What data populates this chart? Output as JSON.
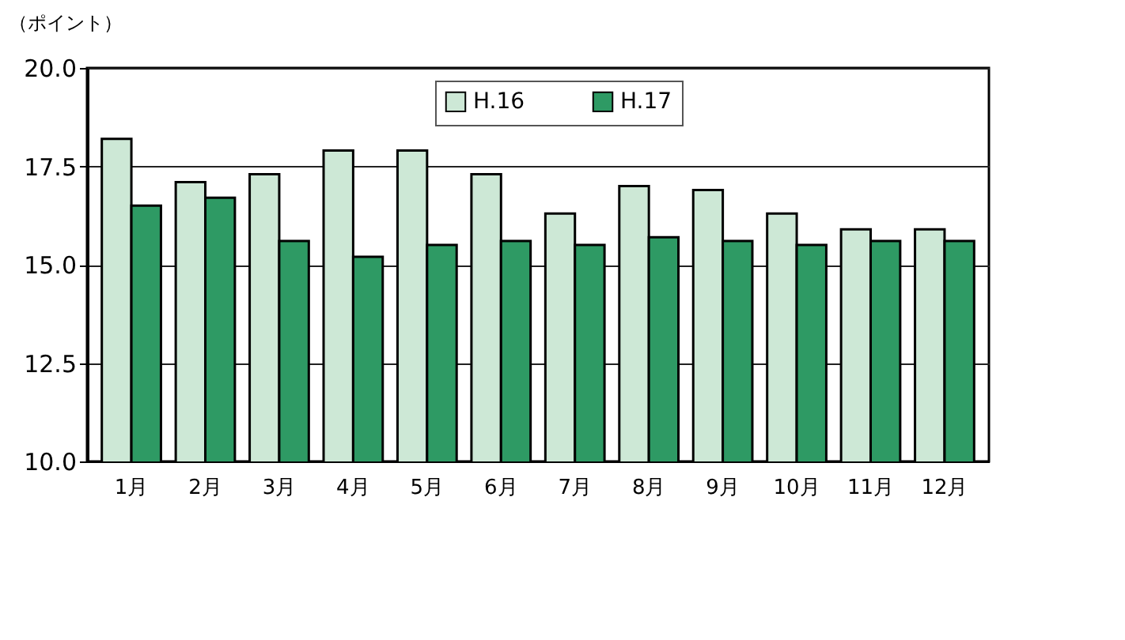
{
  "chart_data": {
    "type": "bar",
    "ylabel": "（ポイント）",
    "categories": [
      "1月",
      "2月",
      "3月",
      "4月",
      "5月",
      "6月",
      "7月",
      "8月",
      "9月",
      "10月",
      "11月",
      "12月"
    ],
    "series": [
      {
        "name": "H.16",
        "color": "#cde8d6",
        "values": [
          18.2,
          17.1,
          17.3,
          17.9,
          17.9,
          17.3,
          16.3,
          17.0,
          16.9,
          16.3,
          15.9,
          15.9
        ]
      },
      {
        "name": "H.17",
        "color": "#2e9a64",
        "values": [
          16.5,
          16.7,
          15.6,
          15.2,
          15.5,
          15.6,
          15.5,
          15.7,
          15.6,
          15.5,
          15.6,
          15.6
        ]
      }
    ],
    "ylim": [
      10.0,
      20.0
    ],
    "yticks": [
      {
        "value": 10,
        "label": "10.0"
      },
      {
        "value": 12.5,
        "label": "12.5"
      },
      {
        "value": 15,
        "label": "15.0"
      },
      {
        "value": 17.5,
        "label": "17.5"
      },
      {
        "value": 20,
        "label": "20.0"
      }
    ],
    "grid": "y",
    "legend": "top"
  }
}
